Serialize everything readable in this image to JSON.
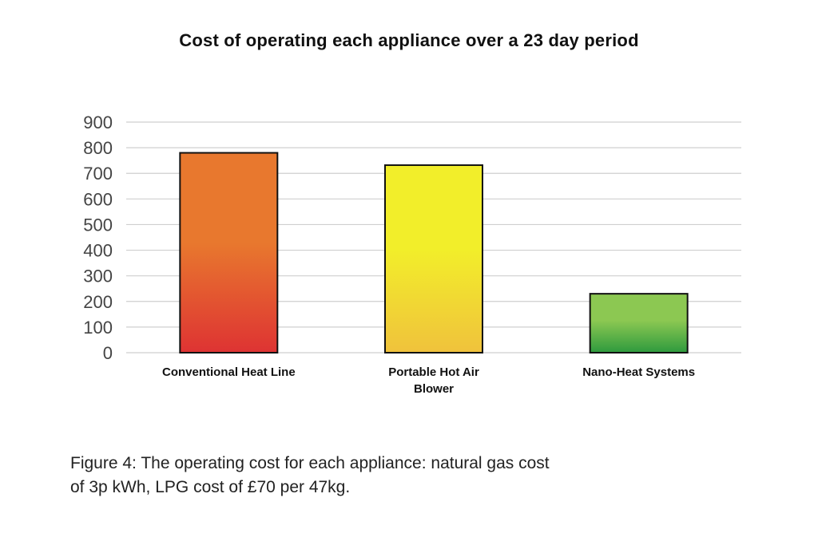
{
  "chart_data": {
    "type": "bar",
    "title": "Cost of operating each appliance over a 23 day period",
    "xlabel": "",
    "ylabel": "",
    "ylim": [
      0,
      900
    ],
    "yticks": [
      0,
      100,
      200,
      300,
      400,
      500,
      600,
      700,
      800,
      900
    ],
    "grid": true,
    "categories": [
      [
        "Conventional Heat Line"
      ],
      [
        "Portable Hot Air",
        "Blower"
      ],
      [
        "Nano-Heat Systems"
      ]
    ],
    "values": [
      780,
      732,
      230
    ],
    "colors": [
      {
        "top": "#e8782e",
        "bottom": "#de3333"
      },
      {
        "top": "#f2ee2a",
        "bottom": "#f0c23c"
      },
      {
        "top": "#8cc852",
        "bottom": "#2e9a3e"
      }
    ]
  },
  "caption": {
    "line1": "Figure 4: The operating cost for each appliance: natural gas cost",
    "line2": "of 3p kWh, LPG cost of £70 per 47kg."
  }
}
